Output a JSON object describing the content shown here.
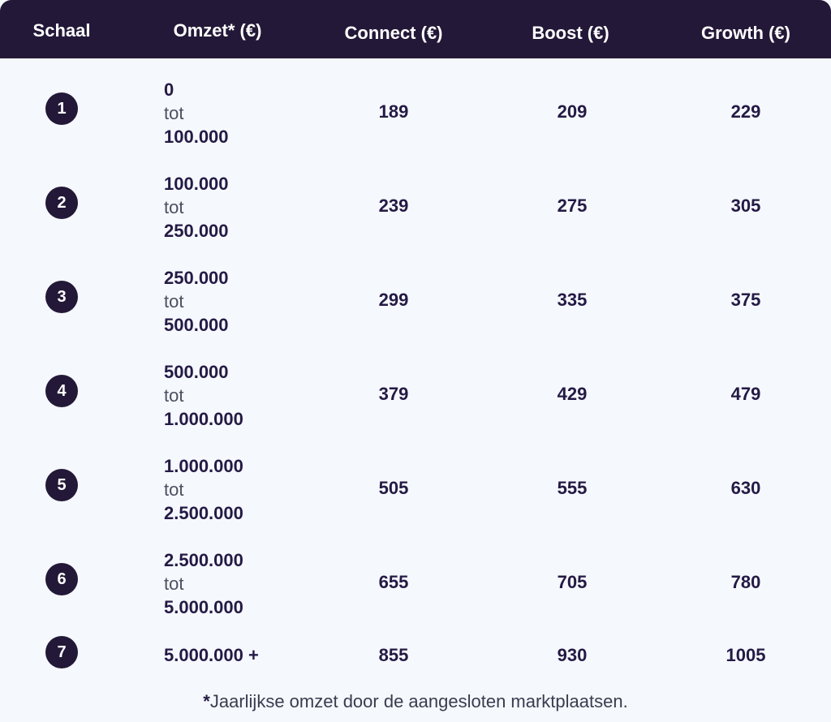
{
  "header": {
    "col_scale": "Schaal",
    "col_revenue": "Omzet* (€)",
    "col_connect": "Connect (€)",
    "col_boost": "Boost (€)",
    "col_growth": "Growth (€)"
  },
  "rows": [
    {
      "scale": "1",
      "from": "0",
      "sep": "tot",
      "to": "100.000",
      "connect": "189",
      "boost": "209",
      "growth": "229"
    },
    {
      "scale": "2",
      "from": "100.000",
      "sep": "tot",
      "to": "250.000",
      "connect": "239",
      "boost": "275",
      "growth": "305"
    },
    {
      "scale": "3",
      "from": "250.000",
      "sep": "tot",
      "to": "500.000",
      "connect": "299",
      "boost": "335",
      "growth": "375"
    },
    {
      "scale": "4",
      "from": "500.000",
      "sep": "tot",
      "to": "1.000.000",
      "connect": "379",
      "boost": "429",
      "growth": "479"
    },
    {
      "scale": "5",
      "from": "1.000.000",
      "sep": "tot",
      "to": "2.500.000",
      "connect": "505",
      "boost": "555",
      "growth": "630"
    },
    {
      "scale": "6",
      "from": "2.500.000",
      "sep": "tot",
      "to": "5.000.000",
      "connect": "655",
      "boost": "705",
      "growth": "780"
    },
    {
      "scale": "7",
      "from": "5.000.000 +",
      "connect": "855",
      "boost": "930",
      "growth": "1005"
    }
  ],
  "footnote": {
    "star": "*",
    "text": "Jaarlijkse omzet door de aangesloten marktplaatsen."
  },
  "colors": {
    "header_bg": "#231838",
    "badge_bg": "#231838",
    "page_bg": "#f5f8fc",
    "text_dark": "#241a45"
  }
}
